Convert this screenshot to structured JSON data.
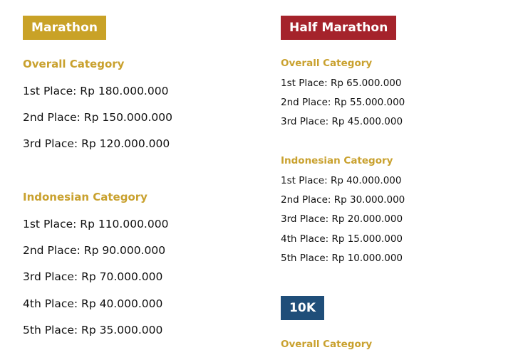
{
  "colors": {
    "marathon": "#c9a227",
    "half_marathon": "#a5232b",
    "ten_k": "#1f4e79",
    "category_text": "#c9a12e",
    "prize_text": "#111111"
  },
  "marathon": {
    "title": "Marathon",
    "overall": {
      "heading": "Overall Category",
      "prizes": [
        "1st Place: Rp 180.000.000",
        "2nd Place: Rp 150.000.000",
        "3rd Place: Rp 120.000.000"
      ]
    },
    "indonesian": {
      "heading": "Indonesian Category",
      "prizes": [
        "1st Place: Rp 110.000.000",
        "2nd Place: Rp 90.000.000",
        "3rd Place: Rp 70.000.000",
        "4th Place: Rp 40.000.000",
        "5th Place: Rp 35.000.000"
      ]
    }
  },
  "half_marathon": {
    "title": "Half Marathon",
    "overall": {
      "heading": "Overall Category",
      "prizes": [
        "1st Place: Rp 65.000.000",
        "2nd Place: Rp 55.000.000",
        "3rd Place: Rp 45.000.000"
      ]
    },
    "indonesian": {
      "heading": "Indonesian Category",
      "prizes": [
        "1st Place: Rp 40.000.000",
        "2nd Place: Rp 30.000.000",
        "3rd Place: Rp 20.000.000",
        "4th Place: Rp 15.000.000",
        "5th Place: Rp 10.000.000"
      ]
    }
  },
  "ten_k": {
    "title": "10K",
    "overall": {
      "heading": "Overall Category"
    }
  }
}
